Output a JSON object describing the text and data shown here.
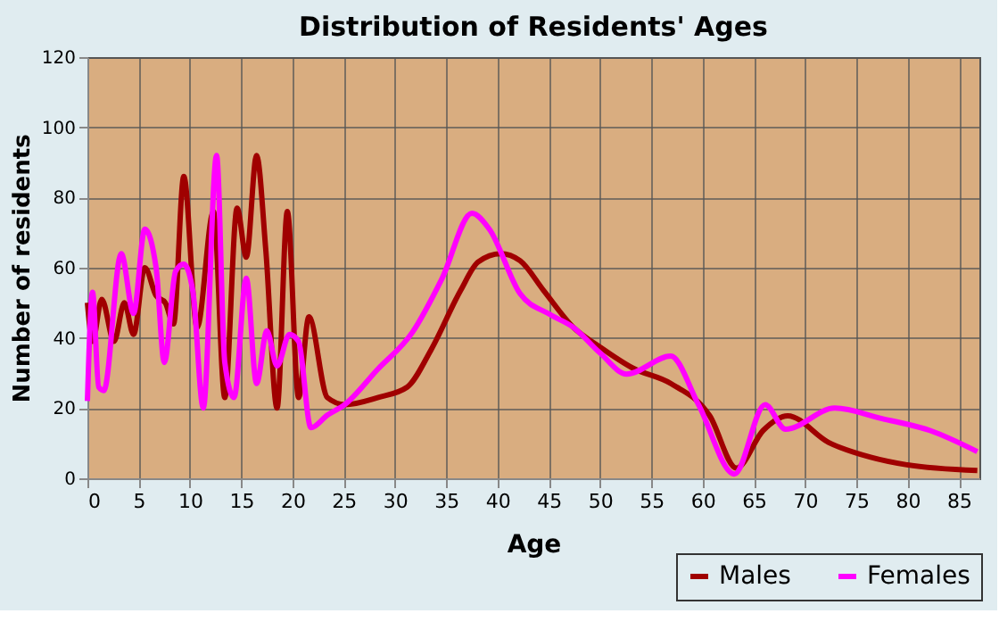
{
  "chart_data": {
    "type": "line",
    "title": "Distribution of Residents' Ages",
    "xlabel": "Age",
    "ylabel": "Number of residents",
    "xlim": [
      0,
      87
    ],
    "ylim": [
      0,
      120
    ],
    "xticks": [
      0,
      5,
      10,
      15,
      20,
      25,
      30,
      35,
      40,
      45,
      50,
      55,
      60,
      65,
      70,
      75,
      80,
      85
    ],
    "yticks": [
      0,
      20,
      40,
      60,
      80,
      100,
      120
    ],
    "grid": true,
    "legend": "bottom right",
    "marker": "none",
    "line_style": "solid",
    "series": [
      {
        "name": "Males",
        "color": "#a00000",
        "x": [
          0,
          0.5,
          1.4,
          2.6,
          3.6,
          4.5,
          5.6,
          6.7,
          7.6,
          8.4,
          9.4,
          10.7,
          12.3,
          13.4,
          14.6,
          15.5,
          16.5,
          17.4,
          18.5,
          19.5,
          20.6,
          21.6,
          23.4,
          25.1,
          28.3,
          31.2,
          33.5,
          36.4,
          38.1,
          40.3,
          42.2,
          44.5,
          47.4,
          50,
          53.2,
          56.9,
          60.7,
          63.3,
          65.9,
          68.3,
          72.3,
          76.4,
          79.8,
          86.8
        ],
        "values": [
          50,
          39,
          51,
          39,
          50,
          41,
          60,
          52,
          50,
          44,
          86,
          43,
          76,
          23,
          77,
          63,
          92,
          65,
          20,
          76,
          23,
          46,
          23,
          21,
          23,
          26,
          36.5,
          53.5,
          61.6,
          64,
          62,
          53.5,
          43,
          37.4,
          31.4,
          27,
          17.8,
          2.9,
          13.6,
          17.8,
          10.2,
          6,
          3.9,
          2.2
        ]
      },
      {
        "name": "Females",
        "color": "#ff00ff",
        "x": [
          0,
          0.5,
          1.1,
          1.6,
          3.3,
          4.5,
          5.6,
          6.7,
          7.5,
          8.6,
          9.4,
          10.3,
          11.3,
          12.6,
          13.4,
          14.3,
          15.5,
          16.5,
          17.5,
          18.5,
          19.7,
          20.6,
          21.8,
          23.4,
          25.1,
          28.3,
          31.7,
          34.6,
          37.5,
          39.2,
          42.2,
          45.1,
          47.4,
          50,
          52.6,
          56.9,
          59.6,
          63.1,
          66.1,
          68.1,
          72.9,
          77.5,
          82.2,
          86.8
        ],
        "values": [
          22,
          53,
          26,
          25,
          64,
          47,
          71,
          60,
          33,
          59,
          61,
          53,
          20,
          92,
          33,
          23,
          57,
          27,
          42,
          32,
          41,
          39,
          14.4,
          18,
          21,
          31,
          41.6,
          57,
          75.5,
          71,
          52.6,
          46.7,
          43,
          35.7,
          29.7,
          34.8,
          21,
          1.2,
          21,
          14,
          20,
          17,
          13.6,
          7.6
        ]
      }
    ]
  }
}
